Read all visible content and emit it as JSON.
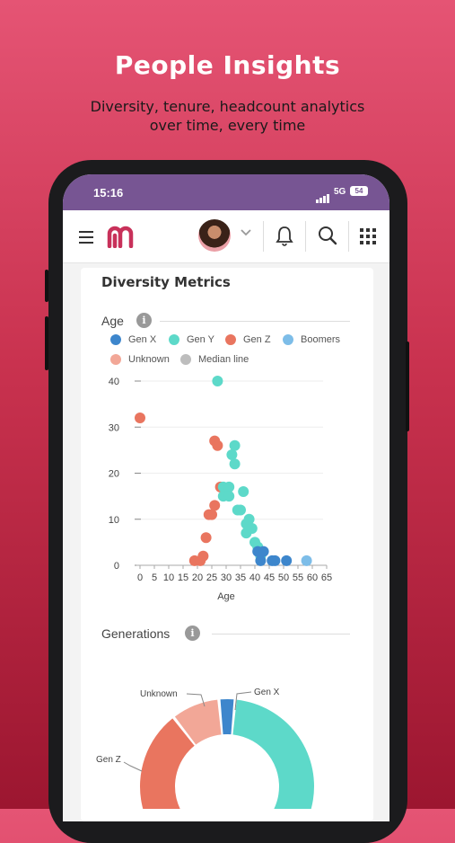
{
  "hero": {
    "title": "People Insights",
    "subtitle_line1": "Diversity, tenure, headcount analytics",
    "subtitle_line2": "over time, every time"
  },
  "status_bar": {
    "time": "15:16",
    "network": "5G",
    "battery": "54"
  },
  "app_bar": {
    "icons": [
      "menu-icon",
      "app-logo",
      "avatar",
      "chevron-down-icon",
      "bell-icon",
      "search-icon",
      "apps-grid-icon"
    ]
  },
  "card": {
    "title": "Diversity Metrics"
  },
  "age_section": {
    "label": "Age",
    "legend": [
      {
        "name": "Gen X",
        "color": "#3d86cc"
      },
      {
        "name": "Gen Y",
        "color": "#5dd9c9"
      },
      {
        "name": "Gen Z",
        "color": "#e9755f"
      },
      {
        "name": "Boomers",
        "color": "#7dbde8"
      },
      {
        "name": "Unknown",
        "color": "#f2a797"
      },
      {
        "name": "Median line",
        "color": "#bdbdbd"
      }
    ]
  },
  "generations_section": {
    "label": "Generations"
  },
  "chart_data": [
    {
      "type": "scatter",
      "title": "Age",
      "xlabel": "Age",
      "ylabel": "",
      "xlim": [
        0,
        65
      ],
      "ylim": [
        0,
        40
      ],
      "x_ticks": [
        "0",
        "5",
        "10",
        "15",
        "20",
        "25",
        "30",
        "35",
        "40",
        "45",
        "50",
        "55",
        "60",
        "65"
      ],
      "y_ticks": [
        "0",
        "10",
        "20",
        "30",
        "40"
      ],
      "series": [
        {
          "name": "Gen Z",
          "color": "#e9755f",
          "points": [
            [
              0,
              32
            ],
            [
              19,
              1
            ],
            [
              21,
              1
            ],
            [
              22,
              2
            ],
            [
              23,
              6
            ],
            [
              24,
              11
            ],
            [
              25,
              11
            ],
            [
              26,
              13
            ],
            [
              26,
              27
            ],
            [
              27,
              26
            ],
            [
              28,
              17
            ]
          ]
        },
        {
          "name": "Gen Y",
          "color": "#5dd9c9",
          "points": [
            [
              27,
              40
            ],
            [
              29,
              17
            ],
            [
              29,
              15
            ],
            [
              31,
              17
            ],
            [
              31,
              15
            ],
            [
              32,
              24
            ],
            [
              33,
              22
            ],
            [
              33,
              26
            ],
            [
              34,
              12
            ],
            [
              35,
              12
            ],
            [
              36,
              16
            ],
            [
              37,
              9
            ],
            [
              37,
              7
            ],
            [
              38,
              10
            ],
            [
              39,
              8
            ],
            [
              40,
              5
            ],
            [
              41,
              4
            ],
            [
              42,
              2
            ]
          ]
        },
        {
          "name": "Gen X",
          "color": "#3d86cc",
          "points": [
            [
              41,
              3
            ],
            [
              42,
              1
            ],
            [
              43,
              3
            ],
            [
              46,
              1
            ],
            [
              47,
              1
            ],
            [
              51,
              1
            ]
          ]
        },
        {
          "name": "Boomers",
          "color": "#7dbde8",
          "points": [
            [
              58,
              1
            ]
          ]
        }
      ]
    },
    {
      "type": "pie",
      "title": "Generations",
      "labels": [
        "Gen X",
        "Gen Y",
        "Gen Z",
        "Unknown"
      ],
      "values": [
        3,
        52,
        36,
        9
      ],
      "colors": [
        "#3d86cc",
        "#5dd9c9",
        "#e9755f",
        "#f2a797"
      ]
    }
  ]
}
